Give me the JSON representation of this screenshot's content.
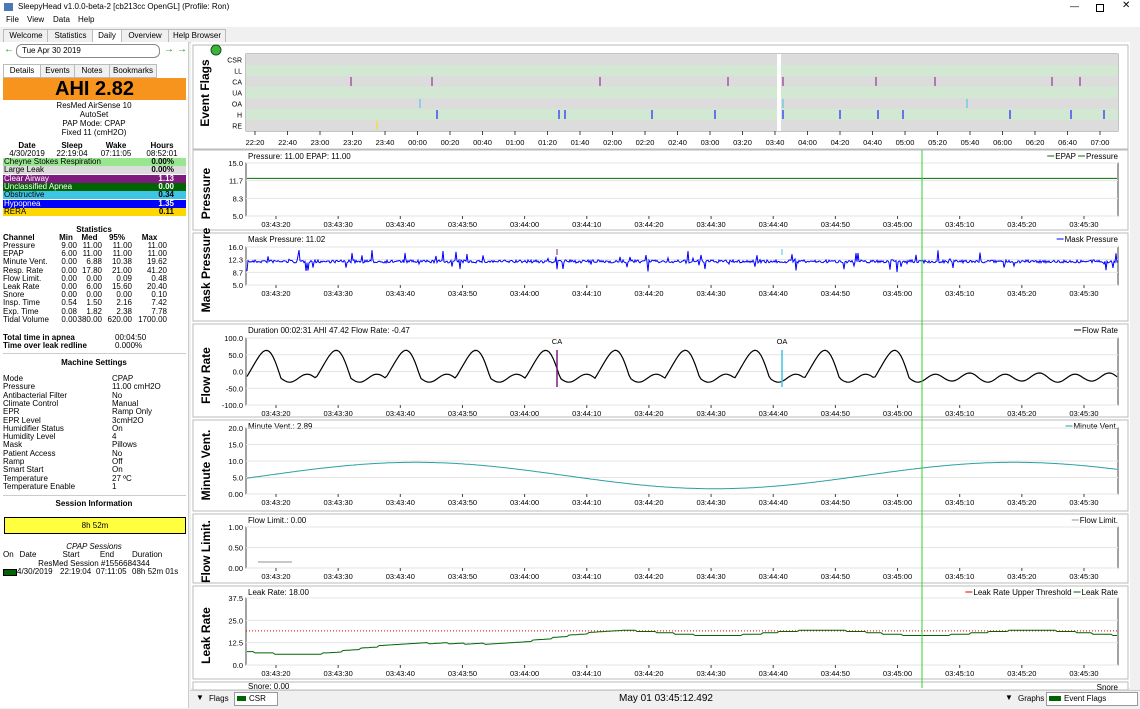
{
  "window": {
    "title": "SleepyHead v1.0.0-beta-2 [cb213cc OpenGL] (Profile: Ron)"
  },
  "menu": [
    "File",
    "View",
    "Data",
    "Help"
  ],
  "tabs": [
    "Welcome",
    "Statistics",
    "Daily",
    "Overview",
    "Help Browser"
  ],
  "date": "Tue Apr 30 2019",
  "subtabs": [
    "Details",
    "Events",
    "Notes",
    "Bookmarks"
  ],
  "ahi": "AHI 2.82",
  "machine": [
    "ResMed AirSense 10",
    "AutoSet",
    "PAP Mode: CPAP",
    "Fixed 11 (cmH2O)"
  ],
  "times": {
    "header": [
      "Date",
      "Sleep",
      "Wake",
      "Hours"
    ],
    "values": [
      "4/30/2019",
      "22:19:04",
      "07:11:05",
      "08:52:01"
    ]
  },
  "events": [
    {
      "name": "Cheyne Stokes Respiration",
      "value": "0.00%",
      "color": "#98e68f",
      "text": "#000000"
    },
    {
      "name": "Large Leak",
      "value": "0.00%",
      "color": "#dcdcdc",
      "text": "#000000"
    },
    {
      "name": "Clear Airway",
      "value": "1.13",
      "color": "#7f1a7f",
      "text": "#ffffff"
    },
    {
      "name": "Unclassified Apnea",
      "value": "0.00",
      "color": "#006400",
      "text": "#ffffff"
    },
    {
      "name": "Obstructive",
      "value": "0.34",
      "color": "#40c4e6",
      "text": "#000000"
    },
    {
      "name": "Hypopnea",
      "value": "1.35",
      "color": "#0000ff",
      "text": "#ffffff"
    },
    {
      "name": "RERA",
      "value": "0.11",
      "color": "#ffd700",
      "text": "#000000"
    }
  ],
  "statistics": {
    "title": "Statistics",
    "header": [
      "Channel",
      "Min",
      "Med",
      "95%",
      "Max"
    ],
    "rows": [
      [
        "Pressure",
        "9.00",
        "11.00",
        "11.00",
        "11.00"
      ],
      [
        "EPAP",
        "6.00",
        "11.00",
        "11.00",
        "11.00"
      ],
      [
        "Minute Vent.",
        "0.00",
        "6.88",
        "10.38",
        "19.62"
      ],
      [
        "Resp. Rate",
        "0.00",
        "17.80",
        "21.00",
        "41.20"
      ],
      [
        "Flow Limit.",
        "0.00",
        "0.00",
        "0.09",
        "0.48"
      ],
      [
        "Leak Rate",
        "0.00",
        "6.00",
        "15.60",
        "20.40"
      ],
      [
        "Snore",
        "0.00",
        "0.00",
        "0.00",
        "0.10"
      ],
      [
        "Insp. Time",
        "0.54",
        "1.50",
        "2.16",
        "7.42"
      ],
      [
        "Exp. Time",
        "0.08",
        "1.82",
        "2.38",
        "7.78"
      ],
      [
        "Tidal Volume",
        "0.00",
        "380.00",
        "620.00",
        "1700.00"
      ]
    ]
  },
  "totals": [
    [
      "Total time in apnea",
      "00:04:50"
    ],
    [
      "Time over leak redline",
      "0.000%"
    ]
  ],
  "machine_settings": {
    "title": "Machine Settings",
    "rows": [
      [
        "Mode",
        "CPAP"
      ],
      [
        "Pressure",
        "11.00 cmH2O"
      ],
      [
        "Antibacterial Filter",
        "No"
      ],
      [
        "Climate Control",
        "Manual"
      ],
      [
        "EPR",
        "Ramp Only"
      ],
      [
        "EPR Level",
        "3cmH2O"
      ],
      [
        "Humidifier Status",
        "On"
      ],
      [
        "Humidity Level",
        "4"
      ],
      [
        "Mask",
        "Pillows"
      ],
      [
        "Patient Access",
        "No"
      ],
      [
        "Ramp",
        "Off"
      ],
      [
        "Smart Start",
        "On"
      ],
      [
        "Temperature",
        "27 ºC"
      ],
      [
        "Temperature Enable",
        "1"
      ]
    ]
  },
  "session": {
    "title": "Session Information",
    "bar": "8h 52m",
    "subtitle": "CPAP Sessions",
    "header": [
      "On",
      "Date",
      "Start",
      "End",
      "Duration"
    ],
    "name": "ResMed Session #1556684344",
    "row": [
      "4/30/2019",
      "22:19:04",
      "07:11:05",
      "08h 52m 01s"
    ]
  },
  "event_flags": {
    "label": "Event Flags",
    "rows": [
      "CSR",
      "LL",
      "CA",
      "UA",
      "OA",
      "H",
      "RE"
    ],
    "xticks": [
      "22:20",
      "22:40",
      "23:00",
      "23:20",
      "23:40",
      "00:00",
      "00:20",
      "00:40",
      "01:00",
      "01:20",
      "01:40",
      "02:00",
      "02:20",
      "02:40",
      "03:00",
      "03:20",
      "03:40",
      "04:00",
      "04:20",
      "04:40",
      "05:00",
      "05:20",
      "05:40",
      "06:00",
      "06:20",
      "06:40",
      "07:00"
    ]
  },
  "xticks": [
    "03:43:20",
    "03:43:30",
    "03:43:40",
    "03:43:50",
    "03:44:00",
    "03:44:10",
    "03:44:20",
    "03:44:30",
    "03:44:40",
    "03:44:50",
    "03:45:00",
    "03:45:10",
    "03:45:20",
    "03:45:30"
  ],
  "graphs": [
    {
      "label": "Pressure",
      "info": "Pressure: 11.00 EPAP: 11.00",
      "legend": [
        "EPAP",
        "Pressure"
      ],
      "yticks": [
        "15.0",
        "11.7",
        "8.3",
        "5.0"
      ],
      "color": "#007000"
    },
    {
      "label": "Mask Pressure",
      "info": "Mask Pressure: 11.02",
      "legend": [
        "Mask Pressure"
      ],
      "yticks": [
        "16.0",
        "12.3",
        "8.7",
        "5.0"
      ],
      "color": "#0000ff"
    },
    {
      "label": "Flow Rate",
      "info": "Duration 00:02:31 AHI 47.42 Flow Rate: -0.47",
      "legend": [
        "Flow Rate"
      ],
      "yticks": [
        "100.0",
        "50.0",
        "0.0",
        "-50.0",
        "-100.0"
      ],
      "color": "#000000",
      "annotations": [
        "CA",
        "OA"
      ]
    },
    {
      "label": "Minute Vent.",
      "info": "Minute Vent.: 2.89",
      "legend": [
        "Minute Vent."
      ],
      "yticks": [
        "20.0",
        "15.0",
        "10.0",
        "5.0",
        "0.00"
      ],
      "color": "#2aa0a0"
    },
    {
      "label": "Flow Limit.",
      "info": "Flow Limit.: 0.00",
      "legend": [
        "Flow Limit."
      ],
      "yticks": [
        "1.00",
        "0.50",
        "0.00"
      ],
      "color": "#909090"
    },
    {
      "label": "Leak Rate",
      "info": "Leak Rate: 18.00",
      "legend": [
        "Leak Rate Upper Threshold",
        "Leak Rate"
      ],
      "yticks": [
        "37.5",
        "25.0",
        "12.5",
        "0.0"
      ],
      "color": "#006400"
    }
  ],
  "snore": {
    "info": "Snore: 0.00",
    "legend": [
      "Snore"
    ]
  },
  "footer": {
    "flags": "Flags",
    "flag_choice": "CSR",
    "cursor_time": "May 01 03:45:12.492",
    "graphs": "Graphs",
    "graph_choice": "Event Flags"
  }
}
